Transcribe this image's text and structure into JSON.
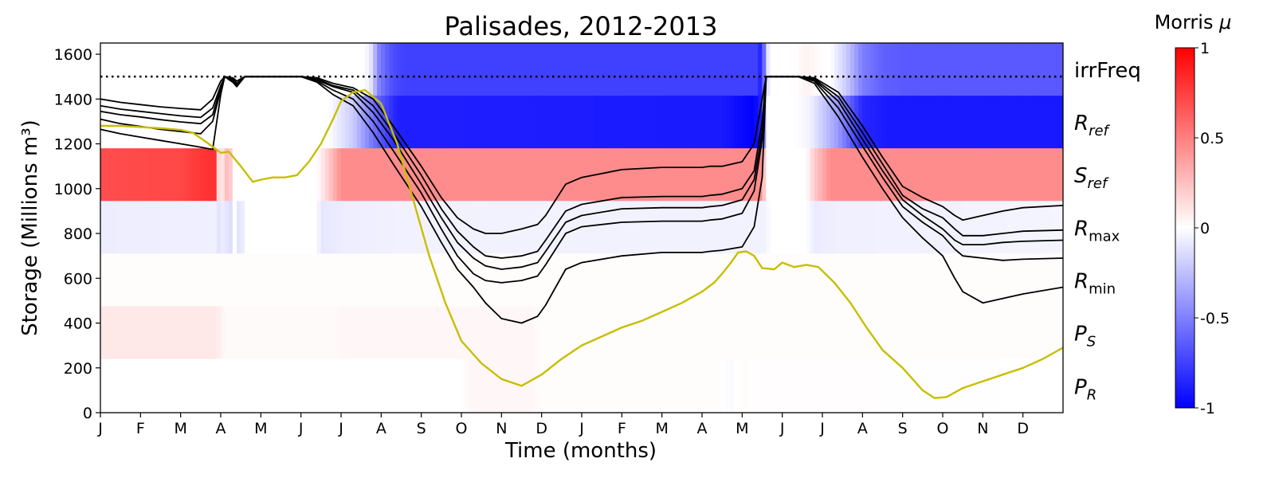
{
  "chart_data": {
    "type": "line",
    "title": "Palisades, 2012-2013",
    "xlabel": "Time (months)",
    "ylabel": "Storage (Millions m³)",
    "ylim": [
      0,
      1650
    ],
    "xlim": [
      0,
      24
    ],
    "yticks": [
      0,
      200,
      400,
      600,
      800,
      1000,
      1200,
      1400,
      1600
    ],
    "xtick_labels": [
      "J",
      "F",
      "M",
      "A",
      "M",
      "J",
      "J",
      "A",
      "S",
      "O",
      "N",
      "D",
      "J",
      "F",
      "M",
      "A",
      "M",
      "J",
      "J",
      "A",
      "S",
      "O",
      "N",
      "D"
    ],
    "reference_line": {
      "y": 1500,
      "style": "dotted"
    },
    "heatmap_rows": [
      {
        "label": "irrFreq",
        "sub": "",
        "italic": false,
        "ylim": [
          1415,
          1650
        ]
      },
      {
        "label": "R",
        "sub": "ref",
        "italic": true,
        "ylim": [
          1180,
          1415
        ]
      },
      {
        "label": "S",
        "sub": "ref",
        "italic": true,
        "ylim": [
          945,
          1180
        ]
      },
      {
        "label": "R",
        "sub": "max",
        "italic": true,
        "subItalic": false,
        "ylim": [
          710,
          945
        ]
      },
      {
        "label": "R",
        "sub": "min",
        "italic": true,
        "subItalic": false,
        "ylim": [
          475,
          710
        ]
      },
      {
        "label": "P",
        "sub": "S",
        "italic": true,
        "ylim": [
          240,
          475
        ]
      },
      {
        "label": "P",
        "sub": "R",
        "italic": true,
        "ylim": [
          0,
          240
        ]
      }
    ],
    "heatmap_values": [
      [
        [
          0,
          0
        ],
        [
          5.9,
          0
        ],
        [
          6.6,
          0
        ],
        [
          6.8,
          -0.15
        ],
        [
          6.9,
          -0.45
        ],
        [
          7.1,
          -0.6
        ],
        [
          7.3,
          -0.7
        ],
        [
          7.6,
          -0.75
        ],
        [
          16.4,
          -0.75
        ],
        [
          16.5,
          -0.95
        ],
        [
          16.6,
          -0.2
        ],
        [
          16.7,
          0
        ],
        [
          17.3,
          0
        ],
        [
          17.6,
          0.05
        ],
        [
          18.0,
          0
        ],
        [
          18.2,
          0
        ],
        [
          18.6,
          -0.2
        ],
        [
          19.0,
          -0.5
        ],
        [
          19.5,
          -0.62
        ],
        [
          20,
          -0.65
        ],
        [
          24,
          -0.65
        ]
      ],
      [
        [
          0,
          0
        ],
        [
          5.7,
          0
        ],
        [
          6.3,
          -0.2
        ],
        [
          6.8,
          -0.55
        ],
        [
          7.4,
          -0.88
        ],
        [
          15.5,
          -0.9
        ],
        [
          16.3,
          -1.0
        ],
        [
          16.5,
          -0.85
        ],
        [
          16.6,
          0
        ],
        [
          17.3,
          0
        ],
        [
          17.7,
          -0.05
        ],
        [
          18.4,
          -0.4
        ],
        [
          19.0,
          -0.85
        ],
        [
          19.6,
          -0.9
        ],
        [
          24,
          -0.9
        ]
      ],
      [
        [
          0,
          0.7
        ],
        [
          2.0,
          0.72
        ],
        [
          2.6,
          0.8
        ],
        [
          2.85,
          0.8
        ],
        [
          2.9,
          0.15
        ],
        [
          3.1,
          0.1
        ],
        [
          3.2,
          0.4
        ],
        [
          3.3,
          0
        ],
        [
          5.4,
          0
        ],
        [
          5.7,
          0.2
        ],
        [
          6.0,
          0.45
        ],
        [
          6.4,
          0.45
        ],
        [
          16.5,
          0.45
        ],
        [
          16.6,
          0
        ],
        [
          17.6,
          0
        ],
        [
          17.8,
          0.2
        ],
        [
          18.2,
          0.45
        ],
        [
          24,
          0.45
        ]
      ],
      [
        [
          0,
          -0.07
        ],
        [
          2.9,
          -0.06
        ],
        [
          3.0,
          -0.15
        ],
        [
          3.1,
          0
        ],
        [
          3.2,
          -0.2
        ],
        [
          3.35,
          0
        ],
        [
          3.5,
          -0.15
        ],
        [
          3.6,
          0
        ],
        [
          5.4,
          0
        ],
        [
          5.5,
          -0.1
        ],
        [
          6.0,
          -0.07
        ],
        [
          8,
          -0.05
        ],
        [
          16.6,
          -0.05
        ],
        [
          16.7,
          0
        ],
        [
          17.6,
          0
        ],
        [
          17.8,
          -0.08
        ],
        [
          18.4,
          -0.06
        ],
        [
          24,
          -0.04
        ]
      ],
      [
        [
          0,
          0.01
        ],
        [
          24,
          0.01
        ]
      ],
      [
        [
          0,
          0.09
        ],
        [
          2.9,
          0.09
        ],
        [
          3.1,
          0.02
        ],
        [
          5.8,
          0.02
        ],
        [
          6.0,
          0.03
        ],
        [
          10.8,
          0.03
        ],
        [
          11.0,
          0.01
        ],
        [
          24,
          0.01
        ]
      ],
      [
        [
          0,
          0.0
        ],
        [
          9.0,
          0.0
        ],
        [
          9.2,
          0.03
        ],
        [
          10.8,
          0.03
        ],
        [
          11.0,
          0.01
        ],
        [
          15.5,
          0.01
        ],
        [
          15.7,
          -0.02
        ],
        [
          16.0,
          0.01
        ],
        [
          24,
          0.0
        ]
      ]
    ],
    "series": [
      {
        "name": "",
        "color": "#000000",
        "x": [
          0,
          0.5,
          1,
          1.5,
          2,
          2.5,
          2.8,
          3.0,
          3.1,
          3.3,
          3.4,
          3.6,
          4.0,
          5.0,
          5.4,
          5.8,
          6.3,
          6.8,
          7.3,
          8,
          8.5,
          8.9,
          9.3,
          9.6,
          10,
          10.5,
          10.9,
          11.1,
          11.6,
          12,
          13,
          14,
          15,
          15.2,
          15.5,
          16,
          16.3,
          16.5,
          16.6,
          17,
          17.4,
          17.8,
          18.4,
          19,
          19.5,
          20,
          20.5,
          21,
          21.3,
          21.5,
          22,
          22.5,
          23,
          24
        ],
        "y": [
          1400,
          1385,
          1375,
          1365,
          1358,
          1352,
          1400,
          1480,
          1500,
          1495,
          1480,
          1500,
          1500,
          1500,
          1495,
          1470,
          1450,
          1400,
          1280,
          1100,
          960,
          870,
          820,
          800,
          800,
          820,
          840,
          880,
          1020,
          1050,
          1085,
          1095,
          1095,
          1100,
          1100,
          1120,
          1200,
          1400,
          1500,
          1500,
          1500,
          1495,
          1430,
          1280,
          1140,
          1010,
          960,
          920,
          880,
          860,
          880,
          900,
          915,
          925
        ]
      },
      {
        "name": "",
        "color": "#000000",
        "x": [
          0,
          0.5,
          1,
          1.5,
          2,
          2.5,
          2.8,
          3.0,
          3.1,
          3.3,
          3.4,
          3.6,
          4.0,
          5.0,
          5.4,
          5.8,
          6.3,
          6.8,
          7.3,
          8,
          8.5,
          8.9,
          9.3,
          9.6,
          10,
          10.5,
          10.9,
          11.1,
          11.6,
          12,
          13,
          14,
          15,
          15.2,
          15.5,
          16,
          16.3,
          16.5,
          16.6,
          17,
          17.4,
          17.8,
          18.4,
          19,
          19.5,
          20,
          20.5,
          21,
          21.3,
          21.5,
          22,
          22.5,
          23,
          24
        ],
        "y": [
          1370,
          1355,
          1345,
          1335,
          1325,
          1318,
          1360,
          1460,
          1500,
          1490,
          1470,
          1500,
          1500,
          1500,
          1490,
          1460,
          1440,
          1370,
          1250,
          1060,
          910,
          810,
          740,
          700,
          690,
          700,
          720,
          770,
          900,
          930,
          960,
          965,
          965,
          970,
          975,
          1000,
          1080,
          1300,
          1500,
          1500,
          1500,
          1490,
          1410,
          1250,
          1110,
          970,
          910,
          870,
          820,
          790,
          790,
          800,
          810,
          815
        ]
      },
      {
        "name": "",
        "color": "#000000",
        "x": [
          0,
          0.5,
          1,
          1.5,
          2,
          2.5,
          2.8,
          3.0,
          3.1,
          3.3,
          3.4,
          3.6,
          4.0,
          5.0,
          5.4,
          5.8,
          6.3,
          6.8,
          7.3,
          8,
          8.5,
          8.9,
          9.3,
          9.6,
          10,
          10.5,
          10.9,
          11.1,
          11.6,
          12,
          13,
          14,
          15,
          15.2,
          15.5,
          16,
          16.3,
          16.5,
          16.6,
          17,
          17.4,
          17.8,
          18.4,
          19,
          19.5,
          20,
          20.5,
          21,
          21.3,
          21.5,
          22,
          22.5,
          23,
          24
        ],
        "y": [
          1345,
          1330,
          1320,
          1308,
          1298,
          1290,
          1330,
          1450,
          1500,
          1485,
          1465,
          1500,
          1500,
          1500,
          1485,
          1455,
          1430,
          1340,
          1220,
          1020,
          870,
          760,
          690,
          655,
          640,
          650,
          670,
          720,
          850,
          880,
          910,
          915,
          915,
          920,
          925,
          950,
          1040,
          1250,
          1500,
          1500,
          1500,
          1485,
          1390,
          1220,
          1080,
          950,
          880,
          820,
          770,
          750,
          750,
          760,
          765,
          770
        ]
      },
      {
        "name": "",
        "color": "#000000",
        "x": [
          0,
          0.5,
          1,
          1.5,
          2,
          2.5,
          2.8,
          3.0,
          3.1,
          3.3,
          3.4,
          3.6,
          4.0,
          5.0,
          5.4,
          5.8,
          6.3,
          6.8,
          7.3,
          8,
          8.5,
          8.9,
          9.3,
          9.6,
          10,
          10.5,
          10.9,
          11.1,
          11.6,
          12,
          13,
          14,
          15,
          15.2,
          15.5,
          16,
          16.3,
          16.5,
          16.6,
          17,
          17.4,
          17.8,
          18.4,
          19,
          19.5,
          20,
          20.5,
          21,
          21.3,
          21.5,
          22,
          22.5,
          23,
          24
        ],
        "y": [
          1310,
          1290,
          1278,
          1265,
          1255,
          1245,
          1300,
          1440,
          1500,
          1480,
          1460,
          1500,
          1500,
          1500,
          1480,
          1440,
          1400,
          1300,
          1170,
          980,
          820,
          700,
          620,
          590,
          580,
          590,
          610,
          660,
          800,
          830,
          850,
          855,
          855,
          860,
          865,
          890,
          990,
          1220,
          1500,
          1500,
          1500,
          1480,
          1360,
          1190,
          1050,
          920,
          850,
          790,
          730,
          700,
          690,
          680,
          685,
          690
        ]
      },
      {
        "name": "",
        "color": "#000000",
        "x": [
          0,
          0.5,
          1,
          1.5,
          2,
          2.5,
          2.8,
          3.0,
          3.1,
          3.3,
          3.4,
          3.6,
          4.0,
          5.0,
          5.4,
          5.8,
          6.3,
          6.8,
          7.3,
          8,
          8.5,
          8.9,
          9.3,
          9.6,
          10,
          10.5,
          10.9,
          11.1,
          11.6,
          12,
          13,
          14,
          15,
          15.2,
          15.5,
          16,
          16.3,
          16.5,
          16.6,
          17,
          17.4,
          17.8,
          18.4,
          19,
          19.5,
          20,
          20.5,
          21,
          21.3,
          21.5,
          22,
          22.5,
          23,
          24
        ],
        "y": [
          1265,
          1245,
          1230,
          1215,
          1200,
          1185,
          1175,
          1420,
          1500,
          1475,
          1455,
          1500,
          1500,
          1500,
          1475,
          1420,
          1370,
          1250,
          1110,
          920,
          760,
          640,
          560,
          490,
          420,
          400,
          430,
          480,
          640,
          670,
          700,
          715,
          715,
          720,
          725,
          740,
          830,
          1050,
          1500,
          1500,
          1500,
          1470,
          1320,
          1140,
          1000,
          870,
          780,
          700,
          600,
          540,
          490,
          510,
          530,
          560
        ]
      },
      {
        "name": "",
        "color": "#c8be00",
        "x": [
          0,
          0.5,
          1,
          1.5,
          2,
          2.3,
          2.7,
          3.0,
          3.2,
          3.5,
          3.8,
          4.0,
          4.3,
          4.6,
          4.9,
          5.2,
          5.5,
          5.8,
          6.0,
          6.3,
          6.6,
          7.0,
          7.4,
          7.8,
          8.2,
          8.6,
          9.0,
          9.5,
          10,
          10.5,
          11,
          11.5,
          12,
          12.5,
          13,
          13.5,
          14,
          14.5,
          15,
          15.3,
          15.5,
          15.7,
          15.9,
          16.1,
          16.3,
          16.5,
          16.8,
          17,
          17.3,
          17.6,
          17.9,
          18.3,
          18.7,
          19.1,
          19.5,
          20,
          20.5,
          20.8,
          21.1,
          21.5,
          22,
          22.5,
          23,
          23.5,
          24
        ],
        "y": [
          1280,
          1280,
          1275,
          1270,
          1262,
          1250,
          1200,
          1160,
          1165,
          1100,
          1030,
          1040,
          1050,
          1050,
          1060,
          1120,
          1200,
          1310,
          1390,
          1430,
          1440,
          1380,
          1200,
          950,
          700,
          490,
          320,
          220,
          150,
          120,
          170,
          240,
          300,
          340,
          380,
          410,
          450,
          490,
          540,
          580,
          620,
          665,
          715,
          720,
          700,
          645,
          640,
          670,
          650,
          660,
          650,
          580,
          490,
          380,
          280,
          200,
          100,
          65,
          70,
          110,
          140,
          170,
          200,
          240,
          290
        ]
      }
    ]
  }
}
